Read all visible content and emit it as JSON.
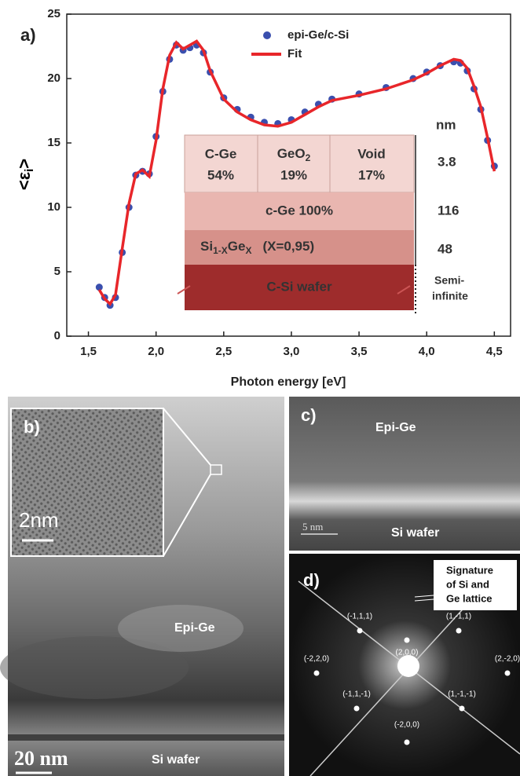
{
  "chart_data": {
    "type": "line",
    "panel_label": "a)",
    "xlabel": "Photon energy [eV]",
    "ylabel": "<ε",
    "ylabel_sub": "i",
    "ylabel_end": ">",
    "x": [
      1.58,
      1.62,
      1.66,
      1.7,
      1.75,
      1.8,
      1.85,
      1.9,
      1.95,
      2.0,
      2.05,
      2.1,
      2.15,
      2.2,
      2.25,
      2.3,
      2.35,
      2.4,
      2.5,
      2.6,
      2.7,
      2.8,
      2.9,
      3.0,
      3.1,
      3.2,
      3.3,
      3.5,
      3.7,
      3.9,
      4.0,
      4.1,
      4.2,
      4.25,
      4.3,
      4.35,
      4.4,
      4.45,
      4.5
    ],
    "series": [
      {
        "name": "epi-Ge/c-Si",
        "color": "#3a4fae",
        "style": "scatter",
        "values": [
          3.8,
          3.0,
          2.4,
          3.0,
          6.5,
          10,
          12.5,
          12.8,
          12.6,
          15.5,
          19,
          21.5,
          22.6,
          22.2,
          22.4,
          22.6,
          22,
          20.5,
          18.5,
          17.6,
          17,
          16.6,
          16.5,
          16.8,
          17.4,
          18,
          18.4,
          18.8,
          19.3,
          20,
          20.5,
          21,
          21.3,
          21.2,
          20.6,
          19.2,
          17.6,
          15.2,
          13.2
        ]
      },
      {
        "name": "Fit",
        "color": "#e8262a",
        "style": "line",
        "values": [
          3.6,
          2.9,
          2.5,
          3.2,
          6.8,
          10.3,
          12.6,
          12.9,
          12.4,
          15.2,
          19.2,
          21.8,
          22.8,
          22.3,
          22.6,
          22.9,
          22.2,
          20.6,
          18.4,
          17.4,
          16.8,
          16.4,
          16.3,
          16.6,
          17.2,
          17.8,
          18.3,
          18.7,
          19.2,
          19.9,
          20.4,
          21,
          21.5,
          21.4,
          20.8,
          19.4,
          17.8,
          15.4,
          12.8
        ]
      }
    ],
    "xlim": [
      1.34,
      4.62
    ],
    "ylim": [
      0,
      25
    ],
    "xticks": [
      {
        "value": 1.5,
        "label": "1,5"
      },
      {
        "value": 2.0,
        "label": "2,0"
      },
      {
        "value": 2.5,
        "label": "2,5"
      },
      {
        "value": 3.0,
        "label": "3,0"
      },
      {
        "value": 3.5,
        "label": "3,5"
      },
      {
        "value": 4.0,
        "label": "4,0"
      },
      {
        "value": 4.5,
        "label": "4,5"
      }
    ],
    "yticks": [
      0,
      5,
      10,
      15,
      20,
      25
    ],
    "legend": "upper right",
    "inset": {
      "unit": "nm",
      "top_layer": [
        {
          "name": "C-Ge",
          "fraction": "54%"
        },
        {
          "name": "GeO",
          "sub": "2",
          "fraction": "19%"
        },
        {
          "name": "Void",
          "fraction": "17%"
        }
      ],
      "layer2": "c-Ge 100%",
      "layer3": {
        "a": "Si",
        "a_sub": "1-X",
        "b": "Ge",
        "b_sub": "X",
        "note": "(X=0,95)"
      },
      "layer4": "C-Si wafer",
      "thickness": [
        "3.8",
        "116",
        "48"
      ],
      "substrate_thickness": [
        "Semi-",
        "infinite"
      ]
    }
  },
  "panels": {
    "b": {
      "label": "b)",
      "inset_scale": "2nm",
      "layer": "Epi-Ge",
      "scale": "20 nm",
      "substrate": "Si wafer"
    },
    "c": {
      "label": "c)",
      "layer": "Epi-Ge",
      "scale": "5 nm",
      "substrate": "Si wafer"
    },
    "d": {
      "label": "d)",
      "note": [
        "Signature",
        "of Si and",
        "Ge lattice"
      ],
      "spots": [
        "(2,0,0)",
        "(-1,1,1)",
        "(1,-1,1)",
        "(-2,2,0)",
        "(2,-2,0)",
        "(-1,1,-1)",
        "(1,-1,-1)",
        "(-2,0,0)"
      ]
    }
  }
}
